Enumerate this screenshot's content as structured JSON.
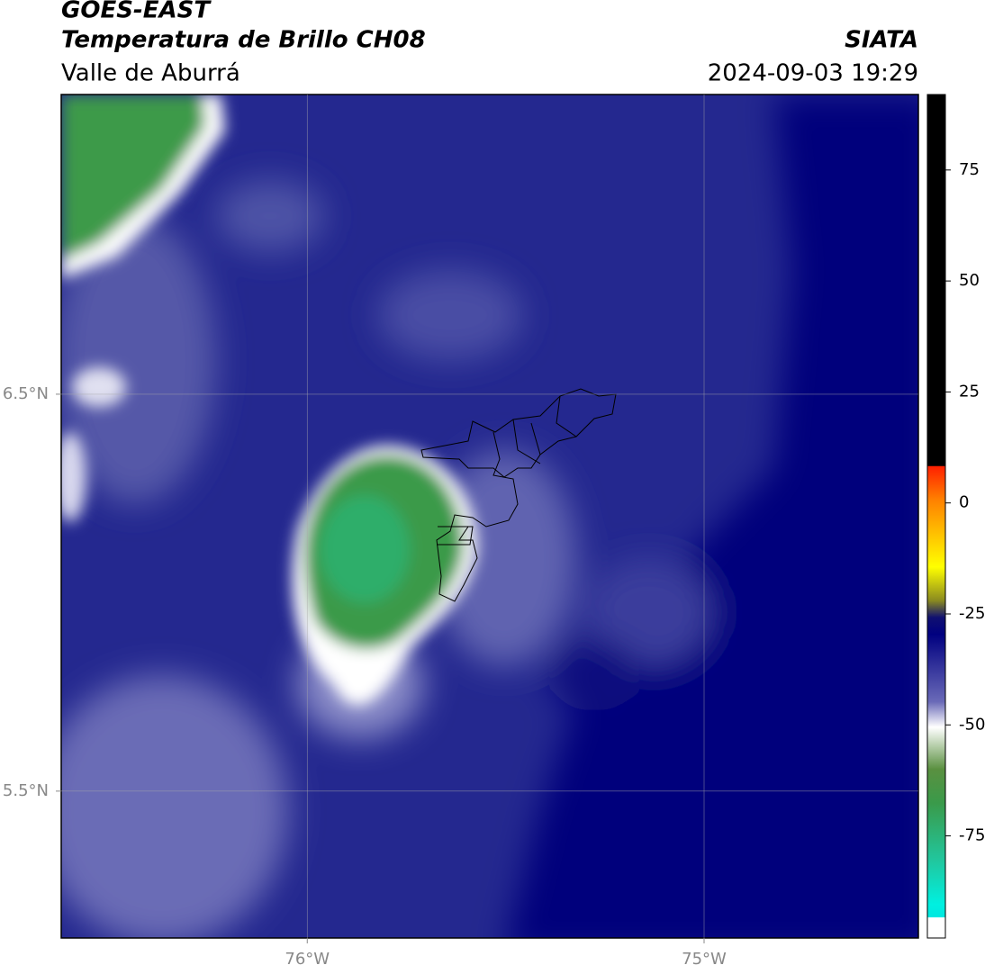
{
  "header": {
    "title": "GOES-EAST",
    "subtitle": "Temperatura de Brillo CH08",
    "region": "Valle de Aburrá",
    "source": "SIATA",
    "datetime": "2024-09-03 19:29"
  },
  "map": {
    "xlim": [
      -76.62,
      -74.46
    ],
    "ylim": [
      5.13,
      7.255
    ],
    "xticks": [
      {
        "value": -76,
        "label": "76°W"
      },
      {
        "value": -75,
        "label": "75°W"
      }
    ],
    "yticks": [
      {
        "value": 6.5,
        "label": "6.5°N"
      },
      {
        "value": 5.5,
        "label": "5.5°N"
      }
    ],
    "grid": true
  },
  "colorbar": {
    "lim": [
      -98,
      92
    ],
    "ticks": [
      75,
      50,
      25,
      0,
      -25,
      -50,
      -75
    ]
  }
}
